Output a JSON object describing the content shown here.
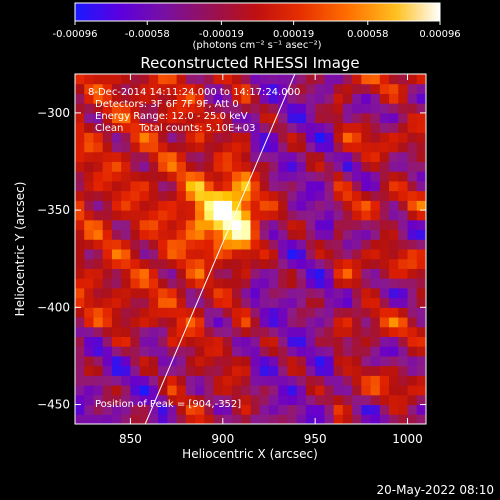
{
  "colorbar": {
    "ticks": [
      -0.00096,
      -0.00058,
      -0.00019,
      0.00019,
      0.00058,
      0.00096
    ],
    "tick_labels": [
      "-0.00096",
      "-0.00058",
      "-0.00019",
      "0.00019",
      "0.00058",
      "0.00096"
    ],
    "units": "(photons cm⁻² s⁻¹ asec⁻²)",
    "range": [
      -0.00096,
      0.00096
    ],
    "colormap": [
      "#1a1aff",
      "#6a00c8",
      "#8b1a8b",
      "#b01010",
      "#e02000",
      "#ff6a00",
      "#ffc000",
      "#ffff80",
      "#ffffff"
    ]
  },
  "chart_data": {
    "type": "heatmap",
    "title": "Reconstructed RHESSI Image",
    "xlabel": "Heliocentric X (arcsec)",
    "ylabel": "Heliocentric Y (arcsec)",
    "xlim": [
      820,
      1010
    ],
    "ylim": [
      -460,
      -280
    ],
    "xticks": [
      850,
      900,
      950,
      1000
    ],
    "yticks": [
      -300,
      -350,
      -400,
      -450
    ],
    "xtick_labels": [
      "850",
      "900",
      "950",
      "1000"
    ],
    "ytick_labels": [
      "−300",
      "−350",
      "−400",
      "−450"
    ],
    "annotations": [
      "8-Dec-2014 14:11:24.000 to 14:17:24.000",
      "Detectors: 3F 6F 7F 9F, Att 0",
      "Energy Range: 12.0 - 25.0 keV",
      "Clean     Total counts: 5.10E+03"
    ],
    "peak_label": "Position of Peak = [904,-352]",
    "peak": [
      904,
      -352
    ],
    "limb_line": [
      [
        858,
        -460
      ],
      [
        939,
        -280
      ]
    ]
  },
  "footer": {
    "date": "20-May-2022 08:10"
  }
}
